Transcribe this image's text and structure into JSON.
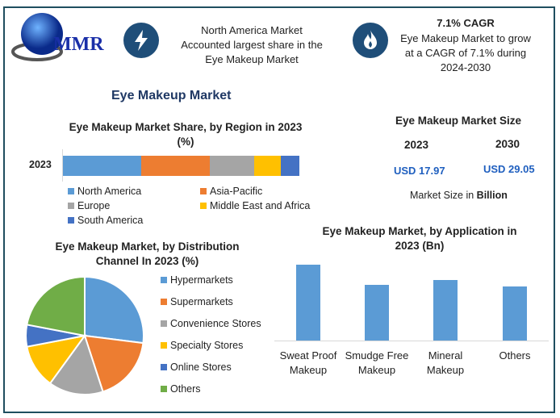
{
  "logo": {
    "text": "MMR"
  },
  "header": {
    "fact1": [
      "North America Market",
      "Accounted largest share in the",
      "Eye Makeup Market"
    ],
    "fact2_title": "7.1% CAGR",
    "fact2": [
      "Eye Makeup Market to grow",
      "at a CAGR of 7.1% during",
      "2024-2030"
    ],
    "icons": [
      "lightning-icon",
      "flame-icon"
    ]
  },
  "main_title": "Eye Makeup Market",
  "market_size": {
    "title": "Eye Makeup Market Size",
    "years": [
      "2023",
      "2030"
    ],
    "values": [
      "USD 17.97",
      "USD 29.05"
    ],
    "note_prefix": "Market Size in ",
    "note_unit": "Billion"
  },
  "colors": {
    "frame": "#1f4e5f",
    "accent": "#1f4e79",
    "value": "#1f5fbf"
  },
  "chart_data": [
    {
      "type": "bar",
      "orientation": "horizontal-stacked",
      "title": "Eye Makeup Market Share, by Region in 2023 (%)",
      "title_lines": [
        "Eye Makeup Market Share, by Region in 2023",
        "(%)"
      ],
      "categories": [
        "2023"
      ],
      "series": [
        {
          "name": "North America",
          "values": [
            33
          ],
          "color": "#5b9bd5"
        },
        {
          "name": "Asia-Pacific",
          "values": [
            29
          ],
          "color": "#ed7d31"
        },
        {
          "name": "Europe",
          "values": [
            19
          ],
          "color": "#a5a5a5"
        },
        {
          "name": "Middle East and Africa",
          "values": [
            11
          ],
          "color": "#ffc000"
        },
        {
          "name": "South America",
          "values": [
            8
          ],
          "color": "#4472c4"
        }
      ],
      "legend": "bottom"
    },
    {
      "type": "pie",
      "title": "Eye Makeup Market, by Distribution Channel In 2023 (%)",
      "title_lines": [
        "Eye Makeup Market, by Distribution",
        "Channel In 2023 (%)"
      ],
      "labels": [
        "Hypermarkets",
        "Supermarkets",
        "Convenience Stores",
        "Specialty Stores",
        "Online Stores",
        "Others"
      ],
      "values": [
        27,
        18,
        15,
        12,
        6,
        22
      ],
      "colors": [
        "#5b9bd5",
        "#ed7d31",
        "#a5a5a5",
        "#ffc000",
        "#4472c4",
        "#70ad47"
      ],
      "legend": "right"
    },
    {
      "type": "bar",
      "title": "Eye Makeup Market, by Application in 2023 (Bn)",
      "title_lines": [
        "Eye Makeup Market, by Application in",
        "2023 (Bn)"
      ],
      "categories": [
        [
          "Sweat Proof",
          "Makeup"
        ],
        [
          "Smudge Free",
          "Makeup"
        ],
        [
          "Mineral",
          "Makeup"
        ],
        [
          "Others",
          ""
        ]
      ],
      "values": [
        5.54,
        4.07,
        4.42,
        3.95
      ],
      "color": "#5b9bd5",
      "ylim": [
        0,
        5.6
      ]
    }
  ]
}
